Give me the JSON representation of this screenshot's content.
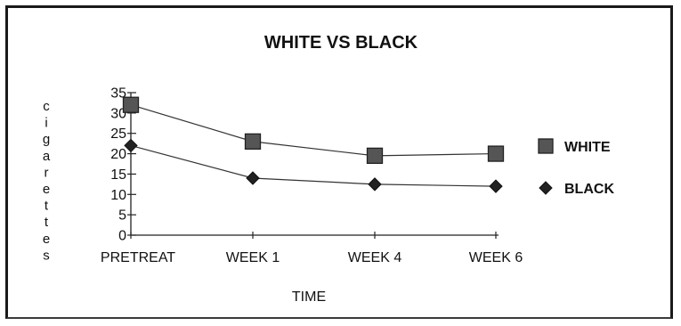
{
  "chart_data": {
    "type": "line",
    "title": "WHITE VS BLACK",
    "xlabel": "TIME",
    "ylabel": "cigarettes",
    "categories": [
      "PRETREAT",
      "WEEK 1",
      "WEEK 4",
      "WEEK 6"
    ],
    "yticks": [
      "0",
      "5",
      "10",
      "15",
      "20",
      "25",
      "30",
      "35"
    ],
    "ylim": [
      0,
      35
    ],
    "grid": false,
    "legend_position": "right",
    "series": [
      {
        "name": "WHITE",
        "marker": "square",
        "color": "#555555",
        "values": [
          32,
          23,
          19.5,
          20
        ]
      },
      {
        "name": "BLACK",
        "marker": "diamond",
        "color": "#222222",
        "values": [
          22,
          14,
          12.5,
          12
        ]
      }
    ]
  }
}
